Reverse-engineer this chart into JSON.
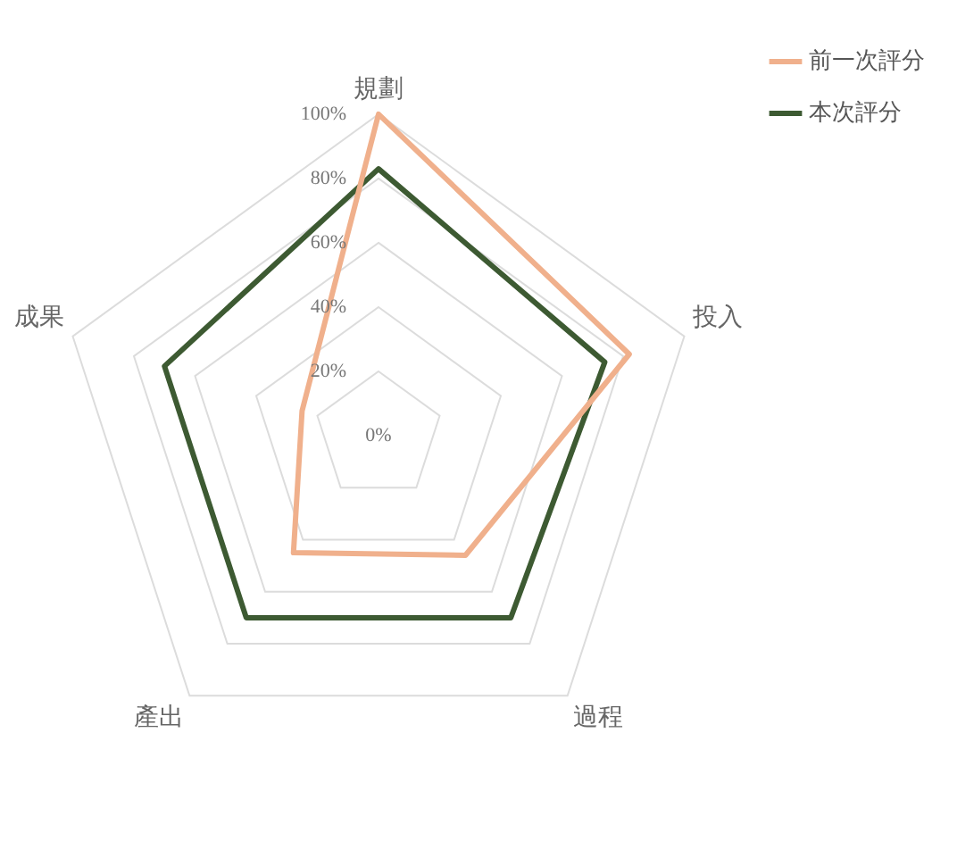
{
  "chart_data": {
    "type": "radar",
    "categories": [
      "規劃",
      "投入",
      "過程",
      "產出",
      "成果"
    ],
    "series": [
      {
        "name": "前一次評分",
        "color": "#f0b08c",
        "values": [
          100,
          82,
          46,
          45,
          25
        ]
      },
      {
        "name": "本次評分",
        "color": "#3d5a32",
        "values": [
          83,
          74,
          70,
          70,
          70
        ]
      }
    ],
    "ylim": [
      0,
      100
    ],
    "yticks": [
      {
        "value": 0,
        "label": "0%"
      },
      {
        "value": 20,
        "label": "20%"
      },
      {
        "value": 40,
        "label": "40%"
      },
      {
        "value": 60,
        "label": "60%"
      },
      {
        "value": 80,
        "label": "80%"
      },
      {
        "value": 100,
        "label": "100%"
      }
    ],
    "grid": true,
    "legend": "top right",
    "marker": "none",
    "line_style": "solid"
  }
}
